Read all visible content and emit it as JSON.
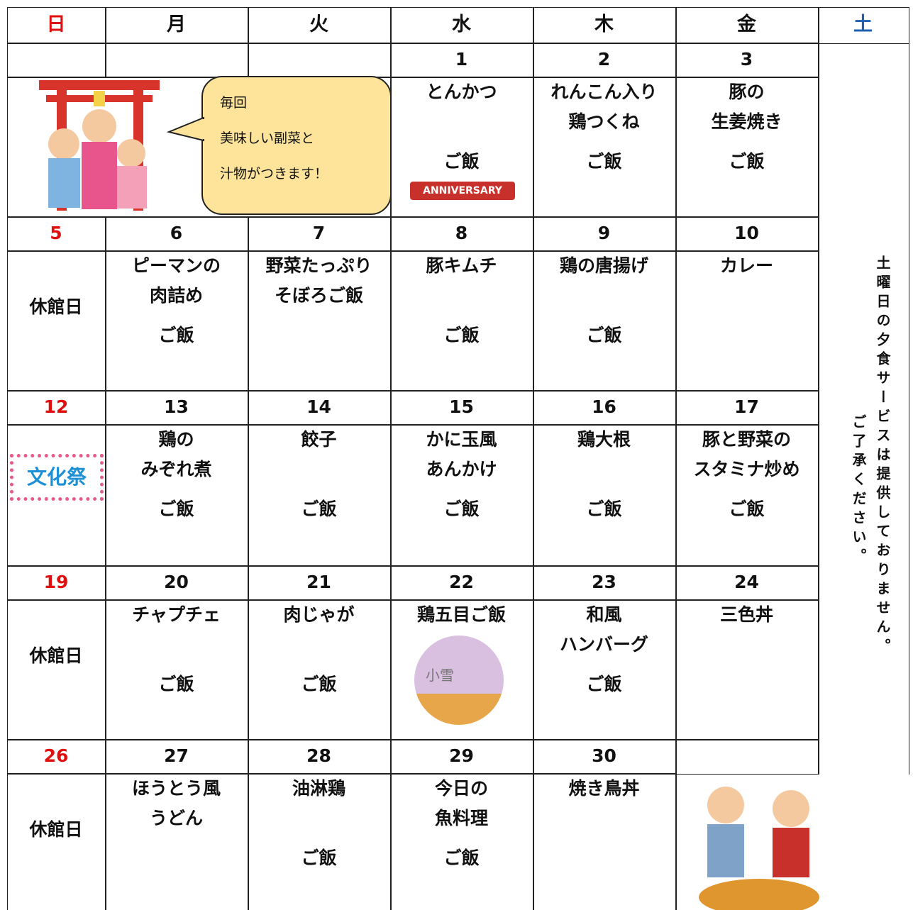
{
  "header": {
    "weekdays": [
      "日",
      "月",
      "火",
      "水",
      "木",
      "金",
      "土"
    ]
  },
  "weeks": [
    {
      "dates": [
        null,
        null,
        null,
        1,
        2,
        3
      ],
      "cells": [
        null,
        null,
        null,
        {
          "dish": [
            "とんかつ"
          ],
          "rice": "ご飯"
        },
        {
          "dish": [
            "れんこん入り",
            "鶏つくね"
          ],
          "rice": "ご飯"
        },
        {
          "dish": [
            "豚の",
            "生姜焼き"
          ],
          "rice": "ご飯"
        }
      ]
    },
    {
      "dates": [
        5,
        6,
        7,
        8,
        9,
        10
      ],
      "cells": [
        {
          "closed": "休館日"
        },
        {
          "dish": [
            "ピーマンの",
            "肉詰め"
          ],
          "rice": "ご飯"
        },
        {
          "dish": [
            "野菜たっぷり",
            "そぼろご飯"
          ]
        },
        {
          "dish": [
            "豚キムチ"
          ],
          "rice": "ご飯"
        },
        {
          "dish": [
            "鶏の唐揚げ"
          ],
          "rice": "ご飯"
        },
        {
          "dish": [
            "カレー"
          ]
        }
      ]
    },
    {
      "dates": [
        12,
        13,
        14,
        15,
        16,
        17
      ],
      "cells": [
        null,
        {
          "dish": [
            "鶏の",
            "みぞれ煮"
          ],
          "rice": "ご飯"
        },
        {
          "dish": [
            "餃子"
          ],
          "rice": "ご飯"
        },
        {
          "dish": [
            "かに玉風",
            "あんかけ"
          ],
          "rice": "ご飯"
        },
        {
          "dish": [
            "鶏大根"
          ],
          "rice": "ご飯"
        },
        {
          "dish": [
            "豚と野菜の",
            "スタミナ炒め"
          ],
          "rice": "ご飯"
        }
      ]
    },
    {
      "dates": [
        19,
        20,
        21,
        22,
        23,
        24
      ],
      "cells": [
        {
          "closed": "休館日"
        },
        {
          "dish": [
            "チャプチェ"
          ],
          "rice": "ご飯"
        },
        {
          "dish": [
            "肉じゃが"
          ],
          "rice": "ご飯"
        },
        {
          "dish": [
            "鶏五目ご飯"
          ]
        },
        {
          "dish": [
            "和風",
            "ハンバーグ"
          ],
          "rice": "ご飯"
        },
        {
          "dish": [
            "三色丼"
          ]
        }
      ]
    },
    {
      "dates": [
        26,
        27,
        28,
        29,
        30,
        null
      ],
      "cells": [
        {
          "closed": "休館日"
        },
        {
          "dish": [
            "ほうとう風",
            "うどん"
          ]
        },
        {
          "dish": [
            "油淋鶏"
          ],
          "rice": "ご飯"
        },
        {
          "dish": [
            "今日の",
            "魚料理"
          ],
          "rice": "ご飯"
        },
        {
          "dish": [
            "焼き鳥丼"
          ]
        },
        null
      ]
    }
  ],
  "bubble": {
    "lines": [
      "毎回",
      "美味しい副菜と",
      "汁物がつきます！"
    ]
  },
  "decorations": {
    "anniversary": "ANNIVERSARY",
    "festival": "文化祭",
    "snow": "小雪"
  },
  "saturday_note": {
    "lines": [
      "土曜日の夕食サービスは提供しておりません。",
      "ご了承ください。"
    ]
  }
}
